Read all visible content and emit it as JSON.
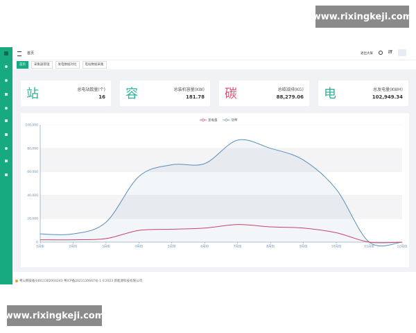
{
  "watermark": {
    "top": "www.rixingkeji.com",
    "bottom": "www.rixingkeji.com"
  },
  "topbar": {
    "breadcrumb": "首页",
    "fullscreen": "退出大屏"
  },
  "tabs": [
    {
      "label": "首页",
      "active": true
    },
    {
      "label": "采集器管理",
      "active": false
    },
    {
      "label": "发电数据对比",
      "active": false
    },
    {
      "label": "电站数据采集",
      "active": false
    }
  ],
  "cards": [
    {
      "icon": "站",
      "label": "总电站数量(个)",
      "value": "16",
      "color": "#2bb39a"
    },
    {
      "icon": "容",
      "label": "总装机容量(KW)",
      "value": "181.78",
      "color": "#2bb39a"
    },
    {
      "icon": "碳",
      "label": "总碳减排(KG)",
      "value": "88,279.06",
      "color": "#d9557a"
    },
    {
      "icon": "电",
      "label": "总发电量(KWH)",
      "value": "102,949.34",
      "color": "#2bb39a"
    }
  ],
  "chart_data": {
    "type": "line",
    "categories": [
      "1月份",
      "2月份",
      "3月份",
      "4月份",
      "5月份",
      "6月份",
      "7月份",
      "8月份",
      "9月份",
      "10月份",
      "11月份",
      "12月份"
    ],
    "series": [
      {
        "name": "发电量",
        "color": "#c8436a",
        "values": [
          2000,
          2000,
          3000,
          10000,
          11000,
          12000,
          15000,
          13000,
          12000,
          8000,
          0,
          0
        ]
      },
      {
        "name": "功率",
        "color": "#5b8db8",
        "values": [
          7000,
          7000,
          17000,
          56000,
          66000,
          67000,
          87000,
          80000,
          70000,
          45000,
          0,
          0
        ],
        "area": true
      }
    ],
    "ylim": [
      0,
      100000
    ],
    "yticks": [
      0,
      {
        "value": 20000,
        "label": "20,000"
      },
      {
        "value": 40000,
        "label": "40,000"
      },
      {
        "value": 60000,
        "label": "60,000"
      },
      {
        "value": 80000,
        "label": "80,000"
      },
      {
        "value": 100000,
        "label": "100,000"
      }
    ],
    "grid": true,
    "smooth": true
  },
  "footer": "粤公网安备44011302004243 粤ICP备2023130667号-1  ©2023 新能源科技有限公司"
}
